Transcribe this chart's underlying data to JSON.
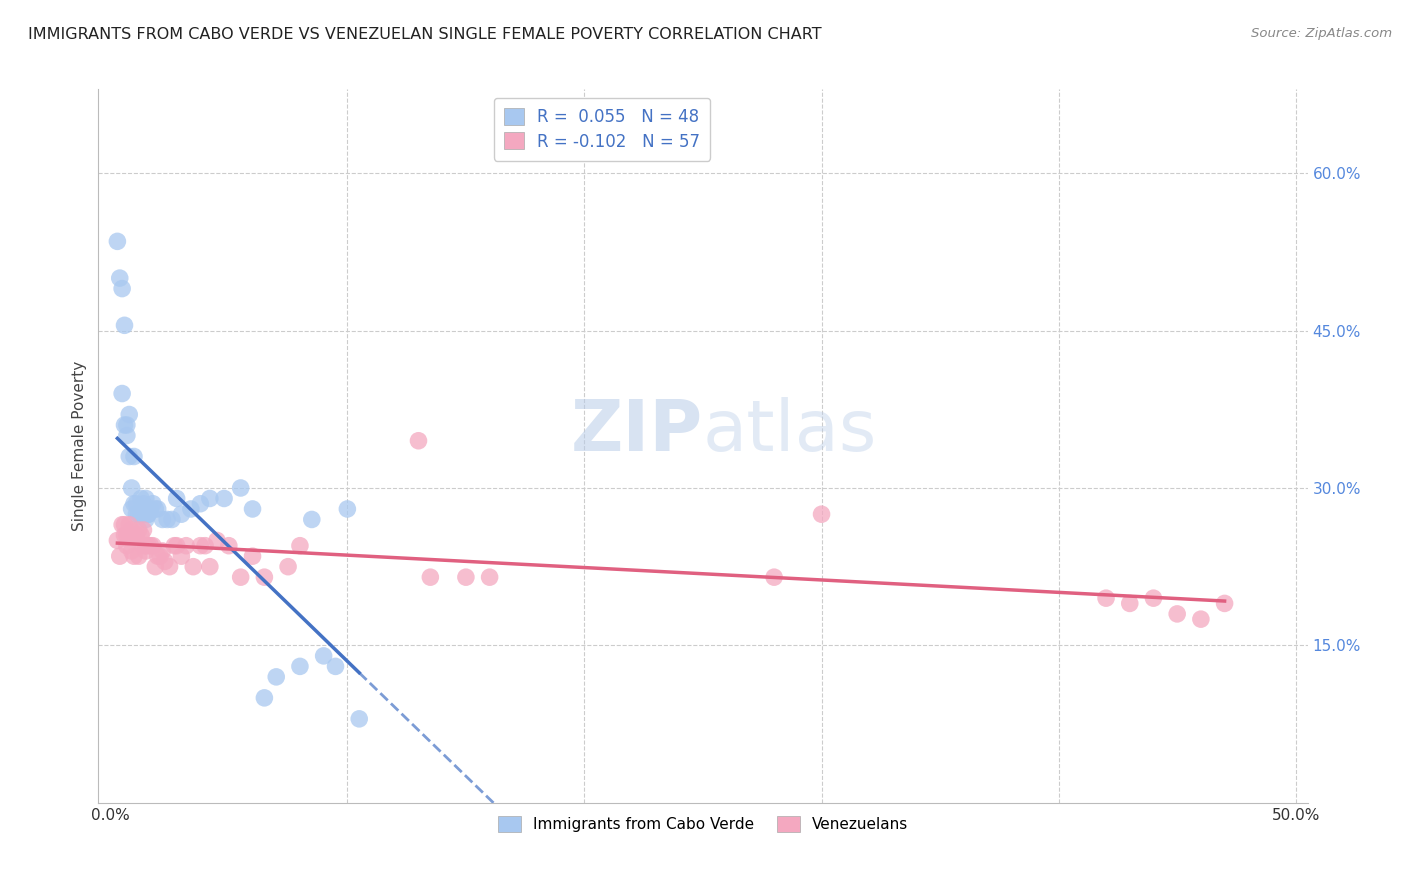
{
  "title": "IMMIGRANTS FROM CABO VERDE VS VENEZUELAN SINGLE FEMALE POVERTY CORRELATION CHART",
  "source": "Source: ZipAtlas.com",
  "ylabel": "Single Female Poverty",
  "legend_label1": "Immigrants from Cabo Verde",
  "legend_label2": "Venezuelans",
  "R1": 0.055,
  "N1": 48,
  "R2": -0.102,
  "N2": 57,
  "color_blue": "#A8C8F0",
  "color_pink": "#F4A8C0",
  "line_blue": "#4472C4",
  "line_pink": "#E06080",
  "watermark_zip": "ZIP",
  "watermark_atlas": "atlas",
  "xlim": [
    0.0,
    0.505
  ],
  "ylim": [
    0.0,
    0.68
  ],
  "right_ytick_vals": [
    0.15,
    0.3,
    0.45,
    0.6
  ],
  "right_ytick_labels": [
    "15.0%",
    "30.0%",
    "45.0%",
    "60.0%"
  ],
  "xtick_vals": [
    0.0,
    0.1,
    0.2,
    0.3,
    0.4,
    0.5
  ],
  "cv_x": [
    0.003,
    0.004,
    0.005,
    0.006,
    0.005,
    0.006,
    0.007,
    0.007,
    0.008,
    0.008,
    0.009,
    0.009,
    0.01,
    0.01,
    0.011,
    0.011,
    0.012,
    0.013,
    0.013,
    0.014,
    0.014,
    0.015,
    0.015,
    0.016,
    0.016,
    0.017,
    0.018,
    0.019,
    0.02,
    0.022,
    0.024,
    0.026,
    0.028,
    0.03,
    0.034,
    0.038,
    0.042,
    0.048,
    0.055,
    0.06,
    0.065,
    0.07,
    0.08,
    0.095,
    0.1,
    0.085,
    0.09,
    0.105
  ],
  "cv_y": [
    0.535,
    0.5,
    0.49,
    0.455,
    0.39,
    0.36,
    0.35,
    0.36,
    0.33,
    0.37,
    0.3,
    0.28,
    0.33,
    0.285,
    0.285,
    0.275,
    0.275,
    0.29,
    0.275,
    0.275,
    0.285,
    0.29,
    0.27,
    0.275,
    0.275,
    0.28,
    0.285,
    0.28,
    0.28,
    0.27,
    0.27,
    0.27,
    0.29,
    0.275,
    0.28,
    0.285,
    0.29,
    0.29,
    0.3,
    0.28,
    0.1,
    0.12,
    0.13,
    0.13,
    0.28,
    0.27,
    0.14,
    0.08
  ],
  "ven_x": [
    0.003,
    0.004,
    0.005,
    0.006,
    0.006,
    0.007,
    0.007,
    0.008,
    0.008,
    0.009,
    0.009,
    0.01,
    0.01,
    0.011,
    0.012,
    0.012,
    0.013,
    0.014,
    0.014,
    0.015,
    0.015,
    0.016,
    0.017,
    0.018,
    0.019,
    0.02,
    0.021,
    0.022,
    0.023,
    0.025,
    0.027,
    0.028,
    0.03,
    0.032,
    0.035,
    0.038,
    0.04,
    0.042,
    0.045,
    0.05,
    0.055,
    0.06,
    0.065,
    0.075,
    0.08,
    0.13,
    0.135,
    0.15,
    0.16,
    0.28,
    0.3,
    0.42,
    0.43,
    0.44,
    0.45,
    0.46,
    0.47
  ],
  "ven_y": [
    0.25,
    0.235,
    0.265,
    0.255,
    0.265,
    0.245,
    0.255,
    0.265,
    0.255,
    0.24,
    0.26,
    0.255,
    0.235,
    0.255,
    0.235,
    0.26,
    0.255,
    0.245,
    0.26,
    0.245,
    0.24,
    0.245,
    0.245,
    0.245,
    0.225,
    0.235,
    0.235,
    0.24,
    0.23,
    0.225,
    0.245,
    0.245,
    0.235,
    0.245,
    0.225,
    0.245,
    0.245,
    0.225,
    0.25,
    0.245,
    0.215,
    0.235,
    0.215,
    0.225,
    0.245,
    0.345,
    0.215,
    0.215,
    0.215,
    0.215,
    0.275,
    0.195,
    0.19,
    0.195,
    0.18,
    0.175,
    0.19
  ]
}
